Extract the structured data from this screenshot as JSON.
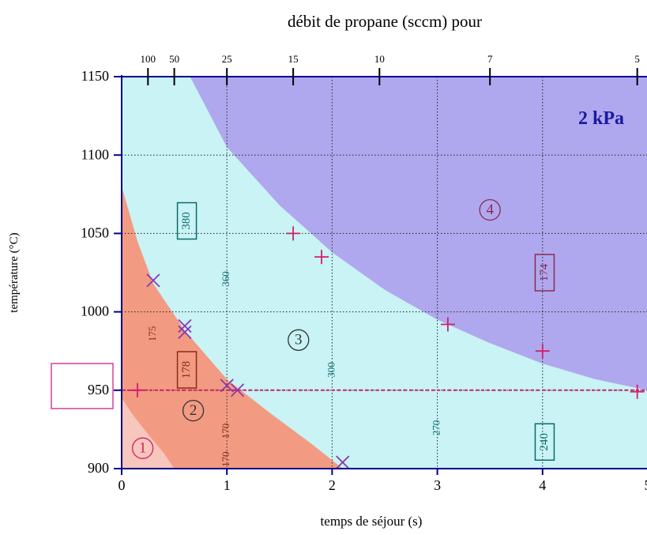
{
  "chart_data": {
    "type": "scatter",
    "title": "débit de propane (sccm) pour",
    "xlabel": "temps de séjour   (s)",
    "ylabel": "température (°C)",
    "annotation_pressure": "2 kPa",
    "xlim": [
      0,
      5
    ],
    "ylim": [
      900,
      1150
    ],
    "x_ticks": [
      "0",
      "1",
      "2",
      "3",
      "4",
      "5"
    ],
    "y_ticks": [
      "900",
      "950",
      "1000",
      "1050",
      "1100",
      "1150"
    ],
    "highlighted_y_tick": "950",
    "top_axis": {
      "ticks": [
        {
          "label": "100",
          "x": 0.25
        },
        {
          "label": "50",
          "x": 0.5
        },
        {
          "label": "25",
          "x": 1.0
        },
        {
          "label": "15",
          "x": 1.63
        },
        {
          "label": "10",
          "x": 2.45
        },
        {
          "label": "7",
          "x": 3.5
        },
        {
          "label": "5",
          "x": 4.9
        }
      ]
    },
    "grid_x": [
      1,
      2,
      3,
      4
    ],
    "grid_y": [
      950,
      1000,
      1050,
      1100
    ],
    "dashed_line_y": 950,
    "region_labels": [
      {
        "label": "1",
        "x": 0.2,
        "y": 913
      },
      {
        "label": "2",
        "x": 0.68,
        "y": 937
      },
      {
        "label": "3",
        "x": 1.68,
        "y": 982
      },
      {
        "label": "4",
        "x": 3.5,
        "y": 1065
      }
    ],
    "region_boundaries": {
      "boundary_1_2": [
        [
          0.0,
          945
        ],
        [
          0.1,
          935
        ],
        [
          0.25,
          922
        ],
        [
          0.4,
          910
        ],
        [
          0.5,
          900
        ]
      ],
      "boundary_2_3": [
        [
          0.0,
          1080
        ],
        [
          0.15,
          1045
        ],
        [
          0.3,
          1018
        ],
        [
          0.6,
          988
        ],
        [
          1.0,
          957
        ],
        [
          1.4,
          936
        ],
        [
          1.8,
          916
        ],
        [
          2.1,
          900
        ]
      ],
      "boundary_3_4": [
        [
          0.65,
          1150
        ],
        [
          1.0,
          1105
        ],
        [
          1.5,
          1068
        ],
        [
          2.0,
          1038
        ],
        [
          2.5,
          1014
        ],
        [
          3.0,
          995
        ],
        [
          3.5,
          980
        ],
        [
          4.0,
          967
        ],
        [
          4.5,
          957
        ],
        [
          5.0,
          950
        ]
      ]
    },
    "plus_points": [
      {
        "x": 0.15,
        "y": 950
      },
      {
        "x": 1.63,
        "y": 1050
      },
      {
        "x": 1.9,
        "y": 1035
      },
      {
        "x": 3.1,
        "y": 992
      },
      {
        "x": 4.0,
        "y": 975
      },
      {
        "x": 4.9,
        "y": 949
      }
    ],
    "cross_points": [
      {
        "x": 0.3,
        "y": 1020
      },
      {
        "x": 0.6,
        "y": 991
      },
      {
        "x": 0.6,
        "y": 987
      },
      {
        "x": 1.0,
        "y": 953
      },
      {
        "x": 1.1,
        "y": 950
      },
      {
        "x": 2.1,
        "y": 904
      }
    ],
    "boxed_labels": [
      {
        "text": "380",
        "x": 0.62,
        "y": 1058,
        "color": "#0b6b6b"
      },
      {
        "text": "178",
        "x": 0.62,
        "y": 963,
        "color": "#8a2a1a"
      },
      {
        "text": "174",
        "x": 4.02,
        "y": 1025,
        "color": "#8a2a50"
      },
      {
        "text": "240",
        "x": 4.02,
        "y": 917,
        "color": "#0b6b6b"
      }
    ],
    "vertical_labels": [
      {
        "text": "175",
        "x": 0.3,
        "y": 986,
        "color": "#8a2a1a"
      },
      {
        "text": "360",
        "x": 1.0,
        "y": 1021,
        "color": "#0b6b6b"
      },
      {
        "text": "300",
        "x": 2.0,
        "y": 963,
        "color": "#0b6b6b"
      },
      {
        "text": "270",
        "x": 3.0,
        "y": 926,
        "color": "#0b6b6b"
      },
      {
        "text": "170",
        "x": 1.0,
        "y": 924,
        "color": "#8a2a1a"
      },
      {
        "text": "170",
        "x": 1.0,
        "y": 906,
        "color": "#8a2a1a"
      }
    ],
    "colors": {
      "region_1": "#f7c6bd",
      "region_2": "#f29b82",
      "region_3": "#c9f3f5",
      "region_4": "#b0a8ee",
      "axis": "#00008b",
      "marker": "#d0206a",
      "cross": "#8a3ab0",
      "annotation": "#1a1aa0",
      "highlight_box": "#d0409a"
    }
  }
}
